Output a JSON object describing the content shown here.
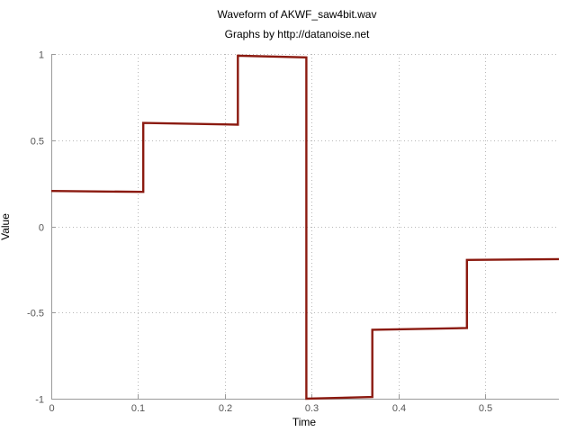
{
  "chart_data": {
    "type": "line",
    "title": "Waveform of AKWF_saw4bit.wav",
    "subtitle": "Graphs by http://datanoise.net",
    "xlabel": "Time",
    "ylabel": "Value",
    "xlim": [
      0,
      0.585
    ],
    "ylim": [
      -1,
      1
    ],
    "xticks": [
      0,
      0.1,
      0.2,
      0.3,
      0.4,
      0.5
    ],
    "xtick_labels": [
      "0",
      "0.1",
      "0.2",
      "0.3",
      "0.4",
      "0.5"
    ],
    "yticks": [
      -1,
      -0.5,
      0,
      0.5,
      1
    ],
    "ytick_labels": [
      "-1",
      "-0.5",
      "0",
      "0.5",
      "1"
    ],
    "grid": true,
    "series": [
      {
        "color": "#8b1a10",
        "x": [
          0,
          0.106,
          0.106,
          0.215,
          0.215,
          0.294,
          0.294,
          0.37,
          0.37,
          0.479,
          0.479,
          0.585
        ],
        "y": [
          0.205,
          0.2,
          0.6,
          0.59,
          0.99,
          0.98,
          -1.0,
          -0.99,
          -0.6,
          -0.59,
          -0.195,
          -0.19
        ]
      }
    ]
  }
}
